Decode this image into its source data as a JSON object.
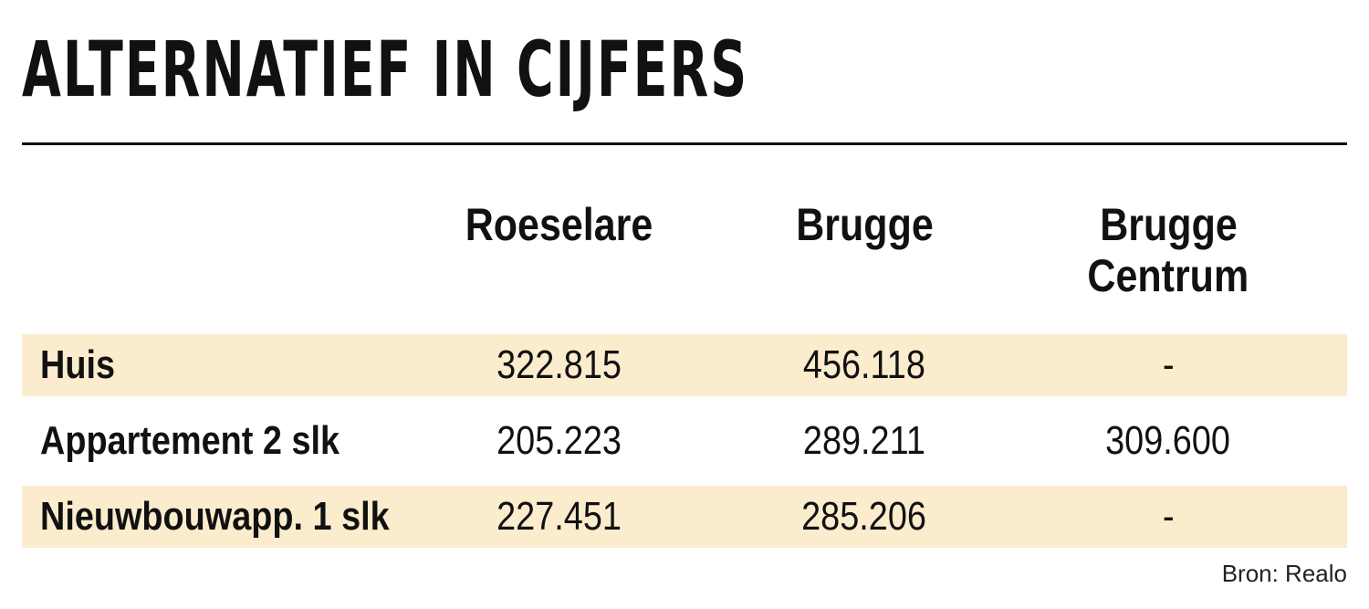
{
  "title": "ALTERNATIEF IN CIJFERS",
  "source": "Bron: Realo",
  "colors": {
    "row_highlight": "#fbeccd",
    "text": "#111111"
  },
  "chart_data": {
    "type": "table",
    "title": "ALTERNATIEF IN CIJFERS",
    "columns": [
      "Roeselare",
      "Brugge",
      "Brugge Centrum"
    ],
    "column_lines": [
      [
        "Roeselare"
      ],
      [
        "Brugge"
      ],
      [
        "Brugge",
        "Centrum"
      ]
    ],
    "rows": [
      {
        "label": "Huis",
        "values": [
          "322.815",
          "456.118",
          "-"
        ],
        "highlight": true
      },
      {
        "label": "Appartement 2 slk",
        "values": [
          "205.223",
          "289.211",
          "309.600"
        ],
        "highlight": false
      },
      {
        "label": "Nieuwbouwapp. 1 slk",
        "values": [
          "227.451",
          "285.206",
          "-"
        ],
        "highlight": true
      }
    ]
  }
}
